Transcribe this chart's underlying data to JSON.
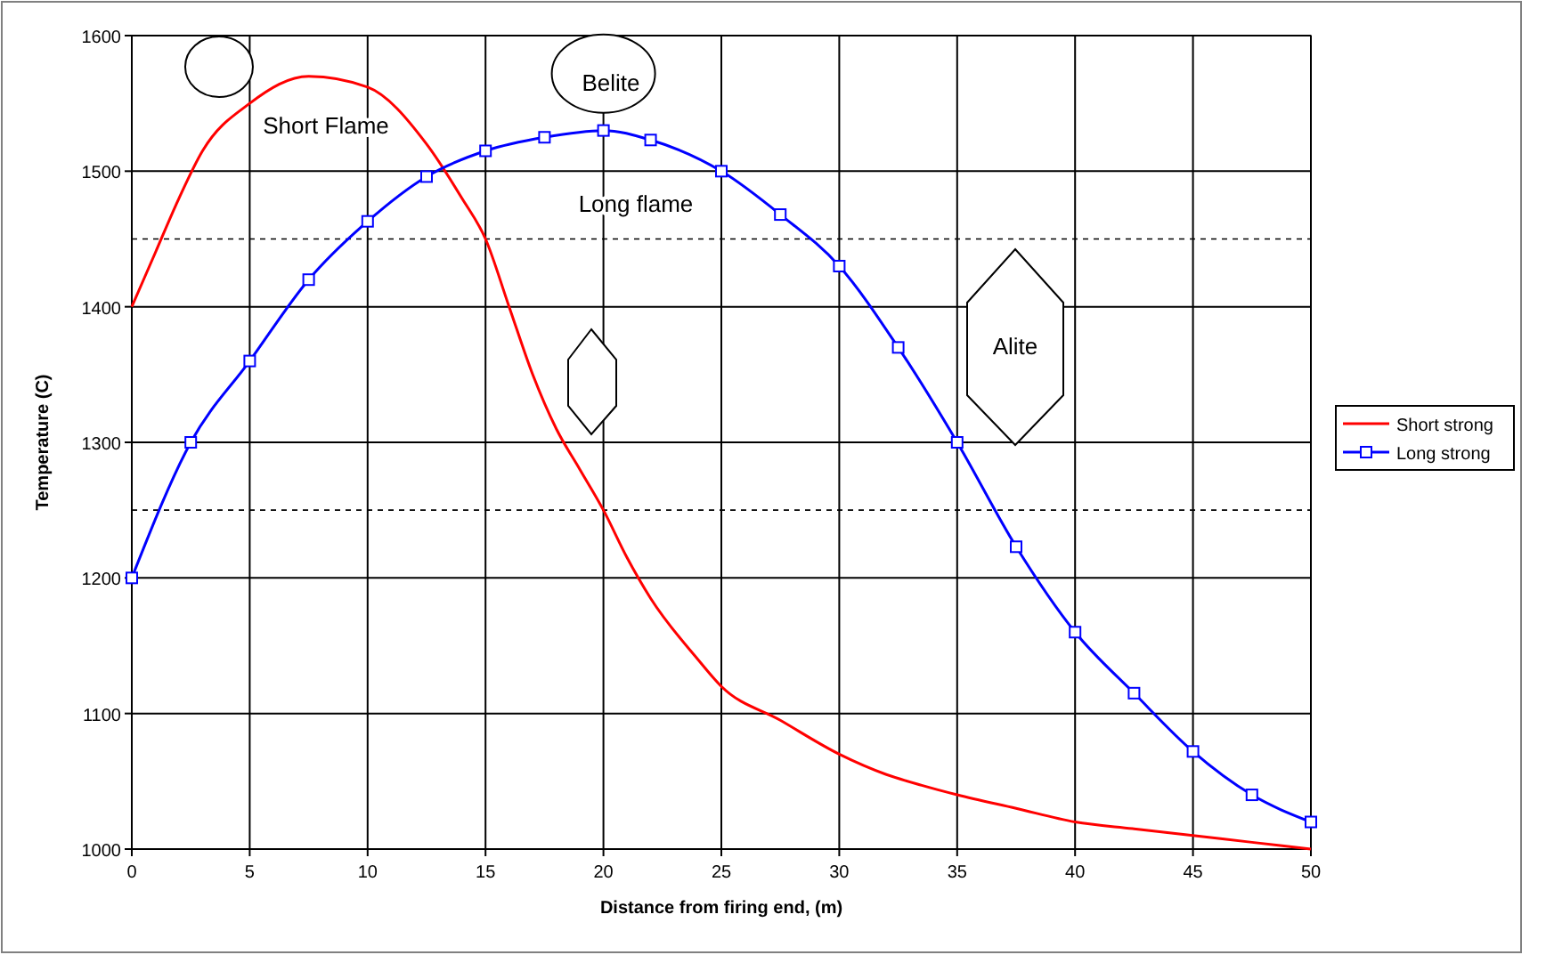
{
  "chart_data": {
    "type": "line",
    "xlabel": "Distance from firing end, (m)",
    "ylabel": "Temperature (C)",
    "xlim": [
      0,
      50
    ],
    "xticks": [
      0,
      5,
      10,
      15,
      20,
      25,
      30,
      35,
      40,
      45,
      50
    ],
    "ylim": [
      1000,
      1600
    ],
    "yticks": [
      1000,
      1100,
      1200,
      1300,
      1400,
      1500,
      1600
    ],
    "grid": true,
    "legend": "right",
    "line_style": "solid",
    "series": [
      {
        "name": "Short strong",
        "color": "#ff0000",
        "marker": "none",
        "x": [
          0,
          1,
          2,
          3,
          5,
          7.5,
          10,
          12.5,
          14,
          15,
          16,
          17,
          18,
          19,
          20,
          21,
          22,
          24,
          25,
          27.5,
          30,
          32,
          33.5,
          35,
          37.5,
          40,
          42.5,
          45,
          47.5,
          50
        ],
        "values": [
          1400,
          1440,
          1480,
          1515,
          1550,
          1570,
          1562,
          1520,
          1480,
          1450,
          1400,
          1350,
          1310,
          1280,
          1250,
          1215,
          1185,
          1140,
          1120,
          1095,
          1070,
          1055,
          1047,
          1040,
          1030,
          1020,
          1015,
          1010,
          1005,
          1000
        ]
      },
      {
        "name": "Long strong",
        "color": "#0000ff",
        "marker": "square",
        "x": [
          0,
          2.5,
          5,
          7.5,
          10,
          12.5,
          15,
          17.5,
          20,
          22,
          25,
          27.5,
          30,
          32.5,
          35,
          37.5,
          40,
          42.5,
          45,
          47.5,
          50
        ],
        "values": [
          1200,
          1300,
          1360,
          1420,
          1463,
          1496,
          1515,
          1525,
          1530,
          1523,
          1500,
          1468,
          1430,
          1370,
          1300,
          1223,
          1160,
          1115,
          1072,
          1040,
          1020
        ]
      }
    ],
    "ref_lines": [
      {
        "axis": "y",
        "value": 1450,
        "line_style": "dashed",
        "color": "#000000"
      },
      {
        "axis": "y",
        "value": 1250,
        "line_style": "dashed",
        "color": "#000000"
      }
    ],
    "annotations": [
      "Short Flame",
      "Belite",
      "Long flame",
      "Alite"
    ]
  }
}
